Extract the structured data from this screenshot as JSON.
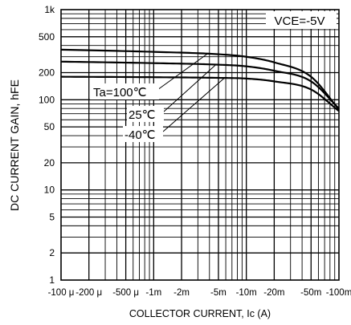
{
  "chart_data": {
    "type": "line",
    "title": "",
    "xlabel": "COLLECTOR CURRENT, Ic (A)",
    "ylabel": "DC CURRENT GAIN,  hFE",
    "condition": "VCE=-5V",
    "x_scale": "log",
    "y_scale": "log",
    "xlim": [
      0.0001,
      0.1
    ],
    "ylim": [
      1,
      1000
    ],
    "grid": true,
    "x_ticks": [
      {
        "value": 0.0001,
        "label": "-100 μ"
      },
      {
        "value": 0.0002,
        "label": "-200 μ"
      },
      {
        "value": 0.0005,
        "label": "-500 μ"
      },
      {
        "value": 0.001,
        "label": "-1m"
      },
      {
        "value": 0.002,
        "label": "-2m"
      },
      {
        "value": 0.005,
        "label": "-5m"
      },
      {
        "value": 0.01,
        "label": "-10m"
      },
      {
        "value": 0.02,
        "label": "-20m"
      },
      {
        "value": 0.05,
        "label": "-50m"
      },
      {
        "value": 0.1,
        "label": "-100m"
      }
    ],
    "y_ticks": [
      {
        "value": 1,
        "label": "1"
      },
      {
        "value": 2,
        "label": "2"
      },
      {
        "value": 5,
        "label": "5"
      },
      {
        "value": 10,
        "label": "10"
      },
      {
        "value": 20,
        "label": "20"
      },
      {
        "value": 50,
        "label": "50"
      },
      {
        "value": 100,
        "label": "100"
      },
      {
        "value": 200,
        "label": "200"
      },
      {
        "value": 500,
        "label": "500"
      },
      {
        "value": 1000,
        "label": "1k"
      }
    ],
    "series": [
      {
        "name": "Ta=100℃",
        "x": [
          0.0001,
          0.001,
          0.005,
          0.01,
          0.02,
          0.05,
          0.1
        ],
        "y": [
          360,
          340,
          320,
          300,
          260,
          180,
          78
        ]
      },
      {
        "name": "25℃",
        "x": [
          0.0001,
          0.001,
          0.005,
          0.01,
          0.02,
          0.05,
          0.1
        ],
        "y": [
          265,
          255,
          245,
          235,
          210,
          160,
          80
        ]
      },
      {
        "name": "-40℃",
        "x": [
          0.0001,
          0.001,
          0.005,
          0.01,
          0.02,
          0.05,
          0.1
        ],
        "y": [
          180,
          178,
          175,
          172,
          160,
          130,
          75
        ]
      }
    ]
  }
}
